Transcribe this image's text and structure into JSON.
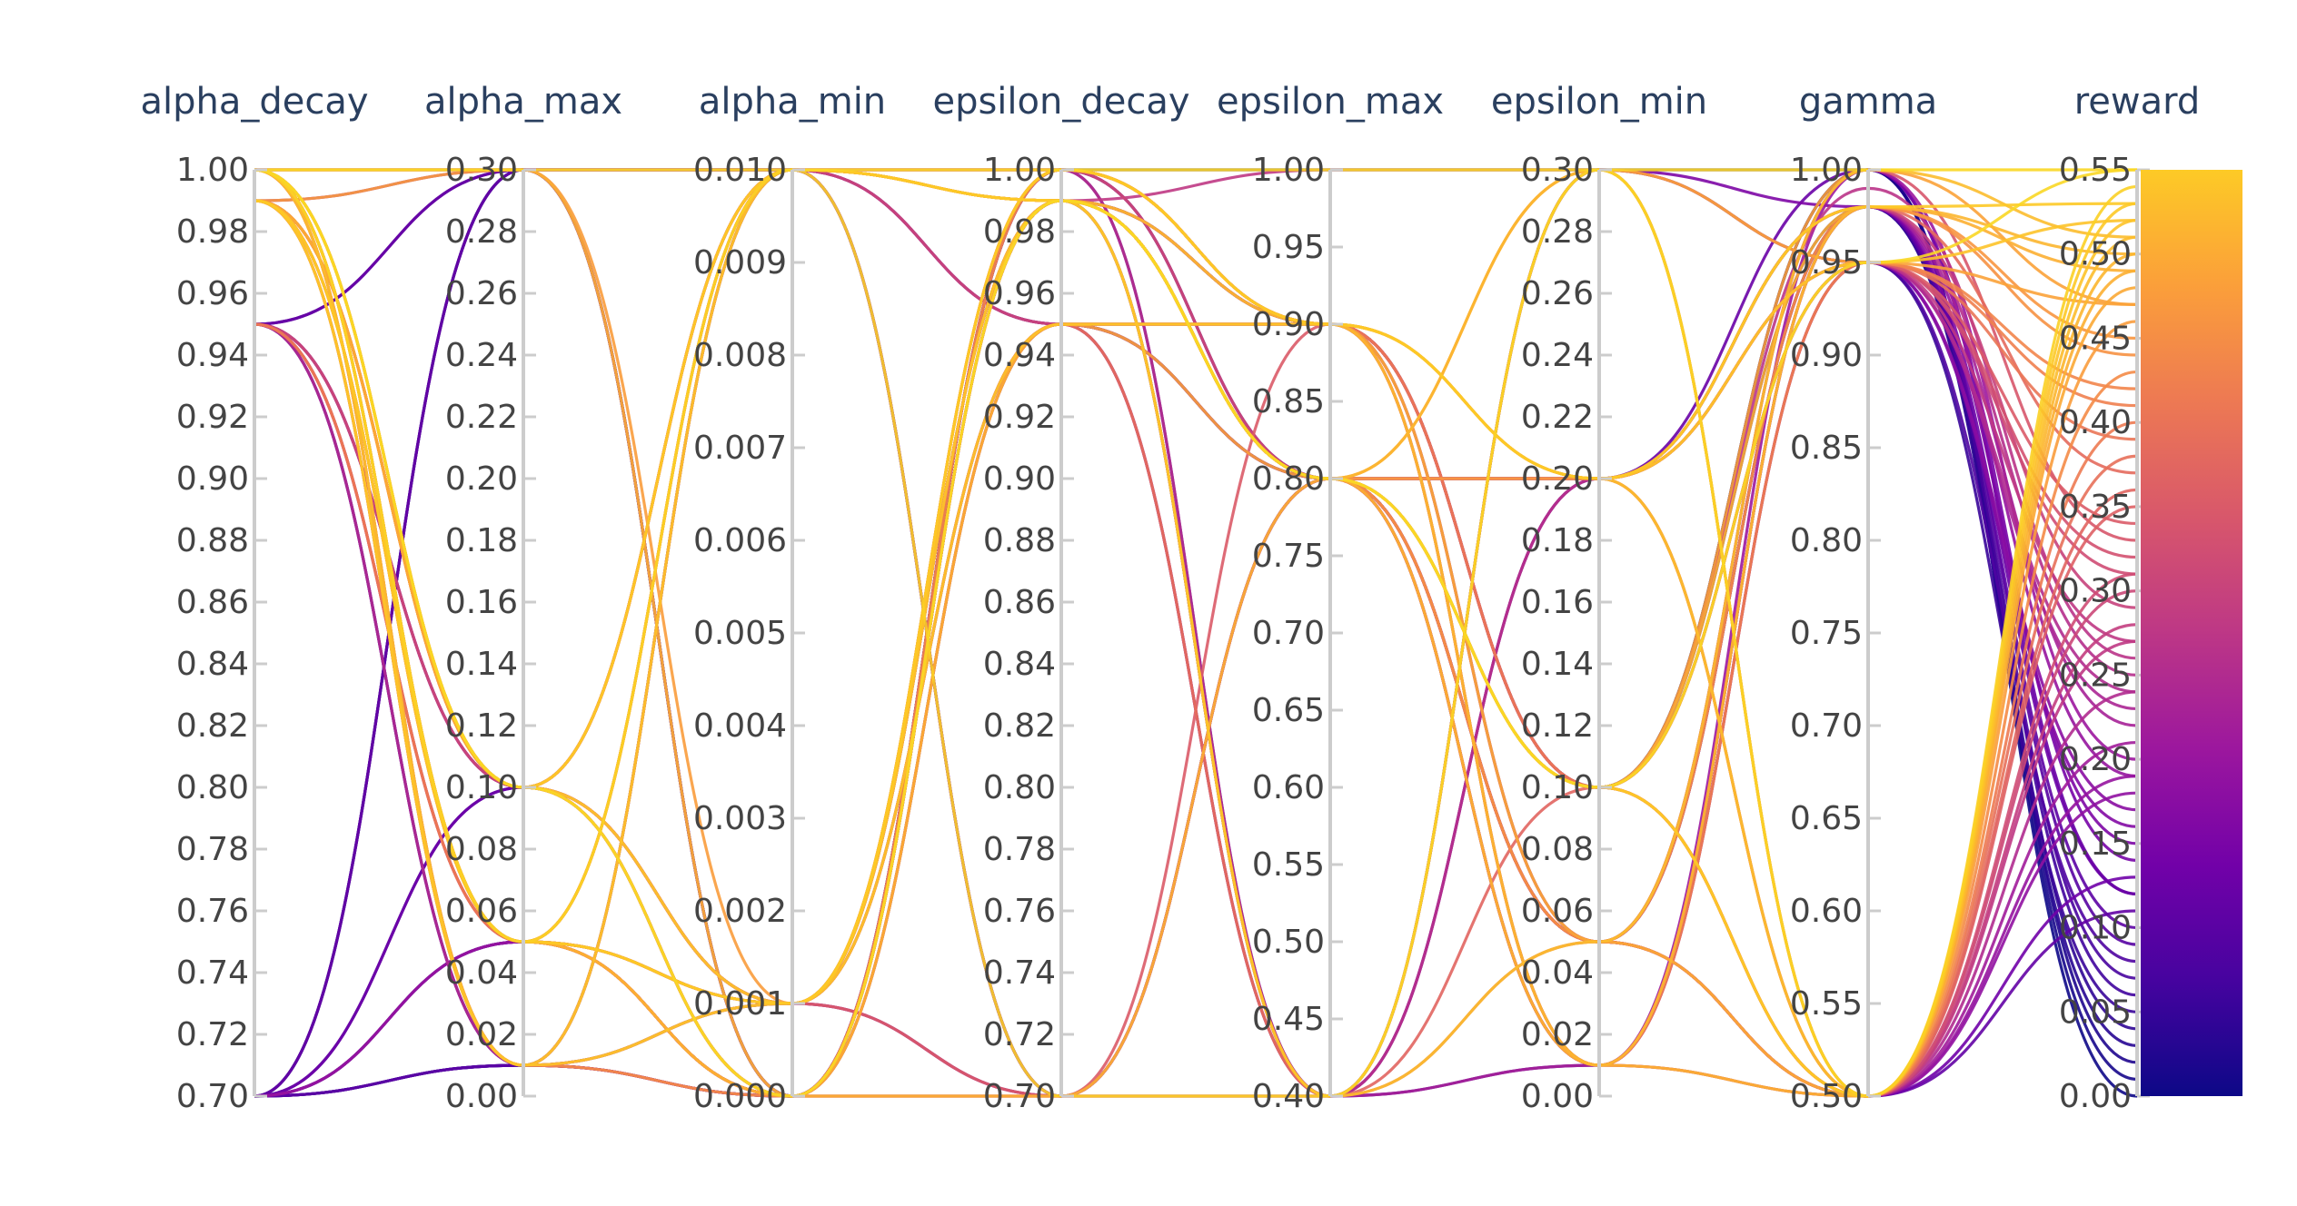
{
  "chart_data": {
    "type": "parallel_coordinates",
    "dimensions": [
      {
        "name": "alpha_decay",
        "range": [
          0.7,
          1.0
        ],
        "ticks": [
          "1.00",
          "0.98",
          "0.96",
          "0.94",
          "0.92",
          "0.90",
          "0.88",
          "0.86",
          "0.84",
          "0.82",
          "0.80",
          "0.78",
          "0.76",
          "0.74",
          "0.72",
          "0.70"
        ],
        "tick_values": [
          1.0,
          0.98,
          0.96,
          0.94,
          0.92,
          0.9,
          0.88,
          0.86,
          0.84,
          0.82,
          0.8,
          0.78,
          0.76,
          0.74,
          0.72,
          0.7
        ]
      },
      {
        "name": "alpha_max",
        "range": [
          0.0,
          0.3
        ],
        "ticks": [
          "0.30",
          "0.28",
          "0.26",
          "0.24",
          "0.22",
          "0.20",
          "0.18",
          "0.16",
          "0.14",
          "0.12",
          "0.10",
          "0.08",
          "0.06",
          "0.04",
          "0.02",
          "0.00"
        ],
        "tick_values": [
          0.3,
          0.28,
          0.26,
          0.24,
          0.22,
          0.2,
          0.18,
          0.16,
          0.14,
          0.12,
          0.1,
          0.08,
          0.06,
          0.04,
          0.02,
          0.0
        ]
      },
      {
        "name": "alpha_min",
        "range": [
          0.0,
          0.01
        ],
        "ticks": [
          "0.010",
          "0.009",
          "0.008",
          "0.007",
          "0.006",
          "0.005",
          "0.004",
          "0.003",
          "0.002",
          "0.001",
          "0.000"
        ],
        "tick_values": [
          0.01,
          0.009,
          0.008,
          0.007,
          0.006,
          0.005,
          0.004,
          0.003,
          0.002,
          0.001,
          0.0
        ]
      },
      {
        "name": "epsilon_decay",
        "range": [
          0.7,
          1.0
        ],
        "ticks": [
          "1.00",
          "0.98",
          "0.96",
          "0.94",
          "0.92",
          "0.90",
          "0.88",
          "0.86",
          "0.84",
          "0.82",
          "0.80",
          "0.78",
          "0.76",
          "0.74",
          "0.72",
          "0.70"
        ],
        "tick_values": [
          1.0,
          0.98,
          0.96,
          0.94,
          0.92,
          0.9,
          0.88,
          0.86,
          0.84,
          0.82,
          0.8,
          0.78,
          0.76,
          0.74,
          0.72,
          0.7
        ]
      },
      {
        "name": "epsilon_max",
        "range": [
          0.4,
          1.0
        ],
        "ticks": [
          "1.00",
          "0.95",
          "0.90",
          "0.85",
          "0.80",
          "0.75",
          "0.70",
          "0.65",
          "0.60",
          "0.55",
          "0.50",
          "0.45",
          "0.40"
        ],
        "tick_values": [
          1.0,
          0.95,
          0.9,
          0.85,
          0.8,
          0.75,
          0.7,
          0.65,
          0.6,
          0.55,
          0.5,
          0.45,
          0.4
        ]
      },
      {
        "name": "epsilon_min",
        "range": [
          0.0,
          0.3
        ],
        "ticks": [
          "0.30",
          "0.28",
          "0.26",
          "0.24",
          "0.22",
          "0.20",
          "0.18",
          "0.16",
          "0.14",
          "0.12",
          "0.10",
          "0.08",
          "0.06",
          "0.04",
          "0.02",
          "0.00"
        ],
        "tick_values": [
          0.3,
          0.28,
          0.26,
          0.24,
          0.22,
          0.2,
          0.18,
          0.16,
          0.14,
          0.12,
          0.1,
          0.08,
          0.06,
          0.04,
          0.02,
          0.0
        ]
      },
      {
        "name": "gamma",
        "range": [
          0.5,
          1.0
        ],
        "ticks": [
          "1.00",
          "0.95",
          "0.90",
          "0.85",
          "0.80",
          "0.75",
          "0.70",
          "0.65",
          "0.60",
          "0.55",
          "0.50"
        ],
        "tick_values": [
          1.0,
          0.95,
          0.9,
          0.85,
          0.8,
          0.75,
          0.7,
          0.65,
          0.6,
          0.55,
          0.5
        ]
      },
      {
        "name": "reward",
        "range": [
          0.0,
          0.55
        ],
        "ticks": [
          "0.55",
          "0.50",
          "0.45",
          "0.40",
          "0.35",
          "0.30",
          "0.25",
          "0.20",
          "0.15",
          "0.10",
          "0.05",
          "0.00"
        ],
        "tick_values": [
          0.55,
          0.5,
          0.45,
          0.4,
          0.35,
          0.3,
          0.25,
          0.2,
          0.15,
          0.1,
          0.05,
          0.0
        ]
      }
    ],
    "colorscale": {
      "name": "Plasma",
      "stops": [
        "#0d0887",
        "#46039f",
        "#7201a8",
        "#9c179e",
        "#bd3786",
        "#d8576b",
        "#ed7953",
        "#fb9f3a",
        "#fdca26",
        "#f0f921"
      ],
      "colorbar_stops": [
        "#0d0887",
        "#46039f",
        "#7201a8",
        "#9c179e",
        "#bd3786",
        "#d8576b",
        "#ed7953",
        "#fb9f3a",
        "#fdca26"
      ],
      "color_by": "reward",
      "cmin": 0.0,
      "cmax": 0.55
    },
    "rows": [
      [
        1.0,
        0.3,
        0.01,
        1.0,
        1.0,
        0.3,
        1.0,
        0.55
      ],
      [
        1.0,
        0.1,
        0.001,
        0.95,
        0.9,
        0.2,
        0.95,
        0.52
      ],
      [
        1.0,
        0.05,
        0.0,
        0.99,
        0.8,
        0.1,
        0.98,
        0.49
      ],
      [
        1.0,
        0.1,
        0.01,
        0.99,
        0.8,
        0.05,
        0.98,
        0.44
      ],
      [
        1.0,
        0.01,
        0.001,
        1.0,
        0.9,
        0.01,
        0.95,
        0.41
      ],
      [
        1.0,
        0.05,
        0.0,
        0.7,
        0.4,
        0.1,
        0.5,
        0.36
      ],
      [
        1.0,
        0.1,
        0.001,
        0.99,
        0.8,
        0.05,
        1.0,
        0.33
      ],
      [
        1.0,
        0.3,
        0.01,
        0.95,
        0.9,
        0.2,
        0.98,
        0.29
      ],
      [
        1.0,
        0.05,
        0.0,
        0.99,
        0.8,
        0.1,
        0.99,
        0.26
      ],
      [
        1.0,
        0.01,
        0.01,
        0.99,
        0.8,
        0.01,
        0.95,
        0.24
      ],
      [
        1.0,
        0.1,
        0.001,
        0.95,
        0.4,
        0.3,
        0.5,
        0.21
      ],
      [
        1.0,
        0.3,
        0.01,
        0.7,
        0.8,
        0.05,
        0.98,
        0.19
      ],
      [
        1.0,
        0.05,
        0.0,
        1.0,
        0.9,
        0.01,
        0.95,
        0.17
      ],
      [
        0.99,
        0.1,
        0.01,
        0.99,
        0.8,
        0.2,
        0.98,
        0.45
      ],
      [
        0.99,
        0.05,
        0.001,
        0.95,
        0.9,
        0.1,
        0.95,
        0.39
      ],
      [
        0.99,
        0.01,
        0.0,
        0.99,
        0.8,
        0.05,
        0.5,
        0.31
      ],
      [
        0.99,
        0.1,
        0.01,
        1.0,
        0.4,
        0.2,
        0.98,
        0.25
      ],
      [
        0.99,
        0.3,
        0.0,
        0.99,
        0.8,
        0.01,
        1.0,
        0.2
      ],
      [
        0.99,
        0.05,
        0.001,
        0.7,
        0.9,
        0.1,
        0.95,
        0.34
      ],
      [
        0.99,
        0.1,
        0.01,
        0.99,
        0.8,
        0.05,
        0.5,
        0.28
      ],
      [
        0.99,
        0.01,
        0.0,
        0.95,
        0.4,
        0.3,
        0.98,
        0.15
      ],
      [
        0.99,
        0.05,
        0.01,
        0.99,
        0.8,
        0.2,
        0.95,
        0.42
      ],
      [
        0.99,
        0.1,
        0.001,
        1.0,
        0.9,
        0.01,
        0.98,
        0.37
      ],
      [
        0.99,
        0.05,
        0.0,
        0.99,
        0.8,
        0.1,
        1.0,
        0.47
      ],
      [
        0.95,
        0.3,
        0.01,
        0.95,
        0.8,
        0.05,
        0.98,
        0.12
      ],
      [
        0.95,
        0.05,
        0.001,
        0.99,
        0.4,
        0.2,
        0.95,
        0.23
      ],
      [
        0.95,
        0.1,
        0.0,
        1.0,
        0.9,
        0.1,
        0.5,
        0.18
      ],
      [
        0.95,
        0.01,
        0.01,
        0.7,
        0.8,
        0.01,
        0.98,
        0.09
      ],
      [
        0.95,
        0.05,
        0.0,
        0.99,
        1.0,
        0.3,
        0.95,
        0.27
      ],
      [
        0.95,
        0.1,
        0.001,
        0.95,
        0.8,
        0.05,
        1.0,
        0.14
      ],
      [
        0.95,
        0.3,
        0.0,
        0.99,
        0.4,
        0.2,
        0.98,
        0.06
      ],
      [
        0.95,
        0.05,
        0.01,
        1.0,
        0.9,
        0.1,
        0.95,
        0.32
      ],
      [
        0.95,
        0.01,
        0.0,
        0.99,
        0.8,
        0.05,
        0.5,
        0.11
      ],
      [
        0.95,
        0.1,
        0.001,
        0.7,
        0.4,
        0.01,
        0.98,
        0.22
      ],
      [
        0.7,
        0.3,
        0.0,
        1.0,
        1.0,
        0.3,
        1.0,
        0.02
      ],
      [
        0.7,
        0.01,
        0.001,
        0.99,
        0.8,
        0.2,
        0.98,
        0.04
      ],
      [
        0.7,
        0.05,
        0.0,
        0.95,
        0.9,
        0.1,
        0.95,
        0.08
      ],
      [
        0.7,
        0.1,
        0.01,
        0.99,
        0.8,
        0.05,
        0.5,
        0.13
      ],
      [
        0.7,
        0.01,
        0.0,
        1.0,
        0.4,
        0.01,
        0.98,
        0.1
      ],
      [
        0.7,
        0.05,
        0.001,
        0.7,
        0.8,
        0.2,
        0.95,
        0.16
      ],
      [
        0.7,
        0.3,
        0.0,
        0.99,
        0.9,
        0.1,
        1.0,
        0.01
      ],
      [
        0.7,
        0.01,
        0.01,
        0.95,
        0.8,
        0.05,
        0.98,
        0.07
      ],
      [
        0.7,
        0.1,
        0.0,
        0.99,
        0.4,
        0.3,
        0.95,
        0.05
      ],
      [
        0.7,
        0.05,
        0.001,
        1.0,
        0.8,
        0.01,
        0.5,
        0.19
      ],
      [
        0.7,
        0.01,
        0.0,
        0.99,
        0.9,
        0.1,
        0.98,
        0.03
      ],
      [
        0.7,
        0.3,
        0.01,
        0.7,
        0.8,
        0.2,
        1.0,
        0.12
      ],
      [
        1.0,
        0.1,
        0.01,
        0.99,
        0.8,
        0.1,
        0.5,
        0.53
      ],
      [
        1.0,
        0.05,
        0.001,
        1.0,
        0.9,
        0.2,
        0.5,
        0.51
      ],
      [
        0.99,
        0.01,
        0.01,
        0.99,
        0.8,
        0.3,
        0.5,
        0.5
      ],
      [
        0.99,
        0.1,
        0.0,
        0.95,
        0.9,
        0.05,
        0.5,
        0.48
      ],
      [
        1.0,
        0.05,
        0.01,
        0.7,
        0.4,
        0.3,
        0.5,
        0.54
      ],
      [
        0.99,
        0.3,
        0.001,
        0.99,
        0.8,
        0.1,
        0.5,
        0.46
      ],
      [
        1.0,
        0.01,
        0.0,
        1.0,
        0.9,
        0.2,
        0.5,
        0.43
      ],
      [
        0.95,
        0.05,
        0.01,
        0.99,
        0.8,
        0.01,
        0.5,
        0.4
      ],
      [
        0.99,
        0.1,
        0.001,
        0.95,
        0.4,
        0.05,
        0.5,
        0.38
      ],
      [
        1.0,
        0.05,
        0.0,
        0.99,
        0.9,
        0.1,
        0.5,
        0.35
      ],
      [
        0.95,
        0.1,
        0.01,
        1.0,
        0.8,
        0.2,
        0.5,
        0.3
      ],
      [
        0.99,
        0.01,
        0.001,
        0.99,
        0.4,
        0.3,
        0.5,
        0.52
      ],
      [
        1.0,
        0.3,
        0.0,
        0.7,
        0.8,
        0.01,
        0.5,
        0.49
      ],
      [
        0.99,
        0.05,
        0.01,
        0.95,
        0.9,
        0.05,
        0.5,
        0.27
      ],
      [
        1.0,
        0.1,
        0.0,
        0.99,
        0.8,
        0.1,
        0.95,
        0.55
      ],
      [
        0.99,
        0.05,
        0.001,
        1.0,
        0.9,
        0.2,
        0.98,
        0.53
      ],
      [
        1.0,
        0.01,
        0.01,
        0.99,
        0.4,
        0.05,
        1.0,
        0.51
      ],
      [
        0.99,
        0.1,
        0.0,
        0.95,
        0.8,
        0.3,
        0.95,
        0.47
      ],
      [
        1.0,
        0.05,
        0.01,
        0.99,
        0.9,
        0.01,
        0.98,
        0.5
      ],
      [
        0.7,
        0.05,
        0.0,
        1.0,
        0.8,
        0.1,
        1.0,
        0.0
      ],
      [
        0.95,
        0.01,
        0.001,
        0.99,
        0.9,
        0.05,
        0.5,
        0.24
      ],
      [
        0.99,
        0.1,
        0.0,
        0.7,
        0.8,
        0.2,
        0.95,
        0.31
      ]
    ]
  }
}
